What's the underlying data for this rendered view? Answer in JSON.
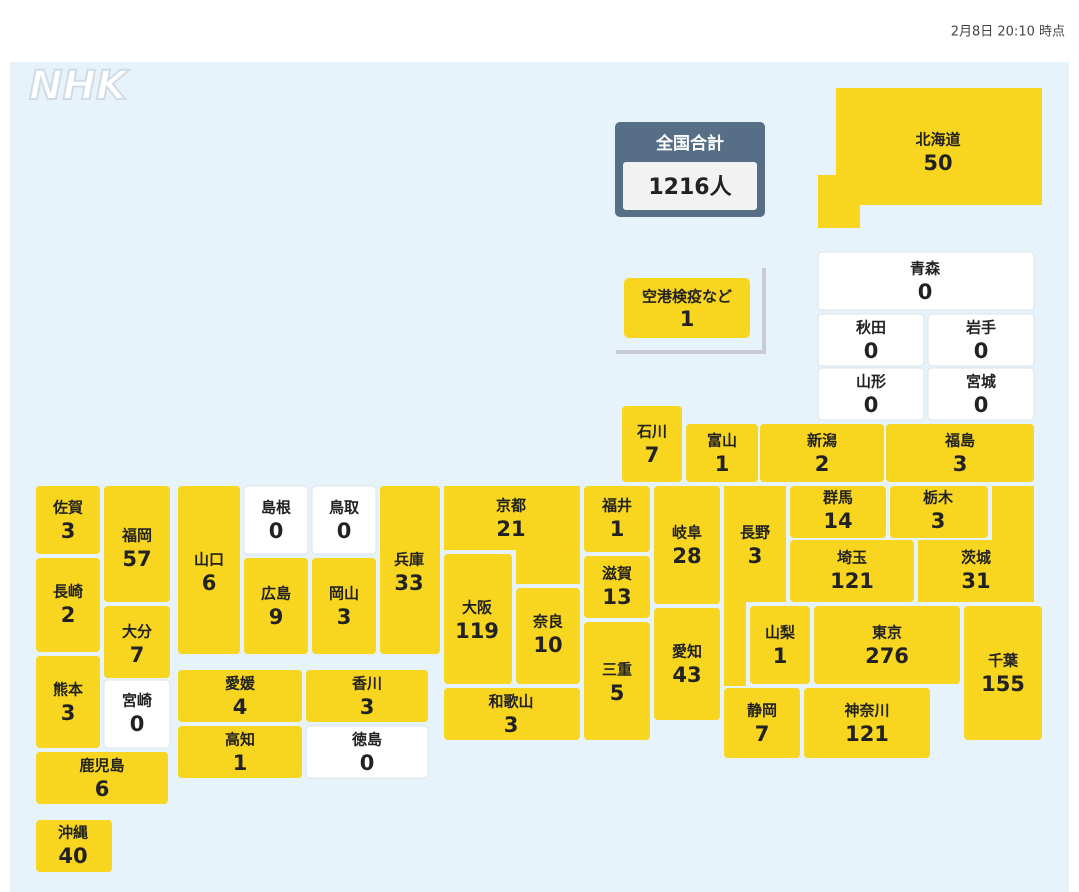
{
  "timestamp": "2月8日 20:10 時点",
  "logo": "NHK",
  "total": {
    "label": "全国合計",
    "value": "1216人"
  },
  "airport": {
    "name": "空港検疫など",
    "count": 1
  },
  "colors": {
    "positive": "#f8d61f",
    "zero": "#ffffff",
    "background": "#e6f3fa",
    "total_box": "#566f86"
  },
  "prefectures": [
    {
      "name": "北海道",
      "count": 50
    },
    {
      "name": "青森",
      "count": 0
    },
    {
      "name": "秋田",
      "count": 0
    },
    {
      "name": "岩手",
      "count": 0
    },
    {
      "name": "山形",
      "count": 0
    },
    {
      "name": "宮城",
      "count": 0
    },
    {
      "name": "石川",
      "count": 7
    },
    {
      "name": "富山",
      "count": 1
    },
    {
      "name": "新潟",
      "count": 2
    },
    {
      "name": "福島",
      "count": 3
    },
    {
      "name": "佐賀",
      "count": 3
    },
    {
      "name": "福岡",
      "count": 57
    },
    {
      "name": "長崎",
      "count": 2
    },
    {
      "name": "大分",
      "count": 7
    },
    {
      "name": "熊本",
      "count": 3
    },
    {
      "name": "宮崎",
      "count": 0
    },
    {
      "name": "鹿児島",
      "count": 6
    },
    {
      "name": "沖縄",
      "count": 40
    },
    {
      "name": "山口",
      "count": 6
    },
    {
      "name": "島根",
      "count": 0
    },
    {
      "name": "鳥取",
      "count": 0
    },
    {
      "name": "広島",
      "count": 9
    },
    {
      "name": "岡山",
      "count": 3
    },
    {
      "name": "兵庫",
      "count": 33
    },
    {
      "name": "京都",
      "count": 21
    },
    {
      "name": "福井",
      "count": 1
    },
    {
      "name": "滋賀",
      "count": 13
    },
    {
      "name": "大阪",
      "count": 119
    },
    {
      "name": "奈良",
      "count": 10
    },
    {
      "name": "三重",
      "count": 5
    },
    {
      "name": "和歌山",
      "count": 3
    },
    {
      "name": "岐阜",
      "count": 28
    },
    {
      "name": "愛知",
      "count": 43
    },
    {
      "name": "長野",
      "count": 3
    },
    {
      "name": "群馬",
      "count": 14
    },
    {
      "name": "栃木",
      "count": 3
    },
    {
      "name": "茨城",
      "count": 31
    },
    {
      "name": "埼玉",
      "count": 121
    },
    {
      "name": "山梨",
      "count": 1
    },
    {
      "name": "東京",
      "count": 276
    },
    {
      "name": "千葉",
      "count": 155
    },
    {
      "name": "静岡",
      "count": 7
    },
    {
      "name": "神奈川",
      "count": 121
    },
    {
      "name": "愛媛",
      "count": 4
    },
    {
      "name": "香川",
      "count": 3
    },
    {
      "name": "高知",
      "count": 1
    },
    {
      "name": "徳島",
      "count": 0
    }
  ]
}
